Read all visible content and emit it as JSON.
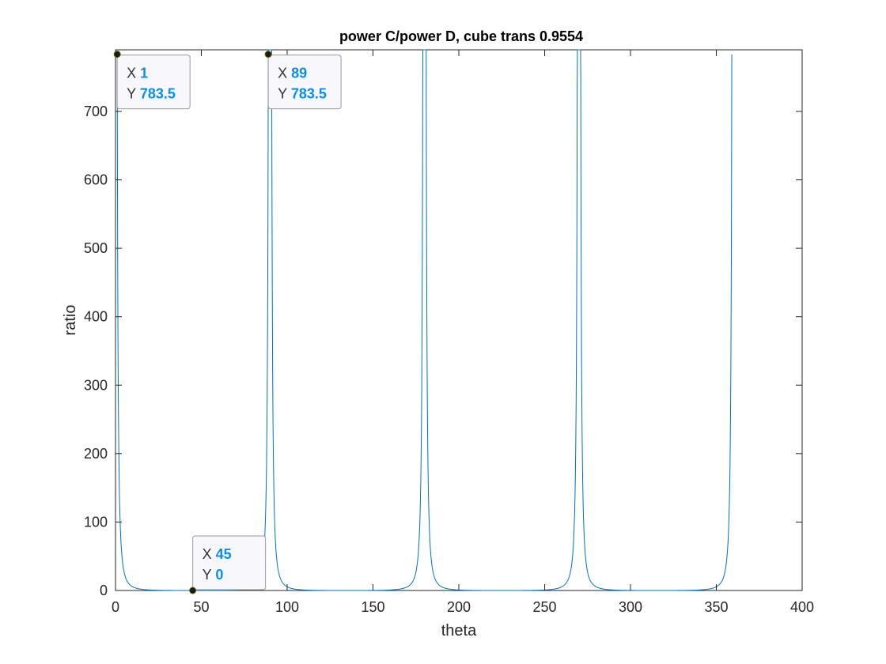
{
  "chart_data": {
    "type": "line",
    "title": "power C/power D, cube trans 0.9554",
    "xlabel": "theta",
    "ylabel": "ratio",
    "xlim": [
      0,
      400
    ],
    "ylim": [
      0,
      790
    ],
    "xticks": [
      0,
      50,
      100,
      150,
      200,
      250,
      300,
      350,
      400
    ],
    "yticks": [
      0,
      100,
      200,
      300,
      400,
      500,
      600,
      700
    ],
    "xtick_labels": [
      "0",
      "50",
      "100",
      "150",
      "200",
      "250",
      "300",
      "350",
      "400"
    ],
    "ytick_labels": [
      "0",
      "100",
      "200",
      "300",
      "400",
      "500",
      "600",
      "700"
    ],
    "grid": false,
    "line_color": "#0072BD",
    "curve": {
      "x_range": [
        1,
        359
      ],
      "period": 90,
      "peak_value": 783.5,
      "minimum_value": 0
    },
    "datatips": [
      {
        "x": 1,
        "y": 783.5,
        "x_prefix": "X",
        "y_prefix": "Y",
        "x_text": "1",
        "y_text": "783.5"
      },
      {
        "x": 89,
        "y": 783.5,
        "x_prefix": "X",
        "y_prefix": "Y",
        "x_text": "89",
        "y_text": "783.5"
      },
      {
        "x": 45,
        "y": 0,
        "x_prefix": "X",
        "y_prefix": "Y",
        "x_text": "45",
        "y_text": "0"
      }
    ],
    "datatip_value_color": "#0a8fe8"
  }
}
